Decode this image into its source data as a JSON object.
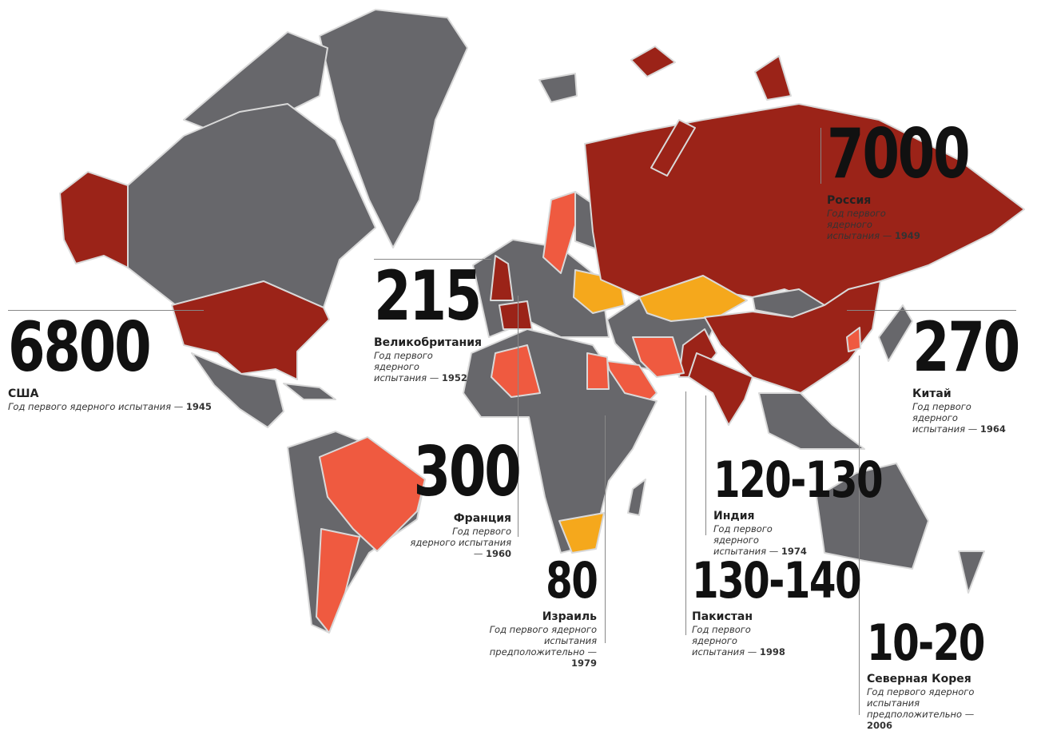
{
  "colors": {
    "land": "#67676b",
    "declared_arsenal": "#9b2318",
    "other_nuclear": "#ef5a40",
    "former_nuclear": "#f5a81c",
    "border": "#d9d9d9"
  },
  "labels": {
    "russia": {
      "value": "7000",
      "country": "Россия",
      "note": "Год первого ядерного испытания —",
      "year": "1949"
    },
    "uk": {
      "value": "215",
      "country": "Великобритания",
      "note": "Год первого ядерного испытания —",
      "year": "1952"
    },
    "usa": {
      "value": "6800",
      "country": "США",
      "note": "Год первого ядерного испытания —",
      "year": "1945"
    },
    "china": {
      "value": "270",
      "country": "Китай",
      "note": "Год первого ядерного испытания —",
      "year": "1964"
    },
    "france": {
      "value": "300",
      "country": "Франция",
      "note": "Год первого ядерного испытания —",
      "year": "1960"
    },
    "india": {
      "value": "120-130",
      "country": "Индия",
      "note": "Год первого ядерного испытания —",
      "year": "1974"
    },
    "israel": {
      "value": "80",
      "country": "Израиль",
      "note": "Год первого ядерного испытания предположительно —",
      "year": "1979"
    },
    "pakistan": {
      "value": "130-140",
      "country": "Пакистан",
      "note": "Год первого ядерного испытания —",
      "year": "1998"
    },
    "north_korea": {
      "value": "10-20",
      "country": "Северная Корея",
      "note": "Год первого ядерного испытания предположительно —",
      "year": "2006"
    }
  }
}
